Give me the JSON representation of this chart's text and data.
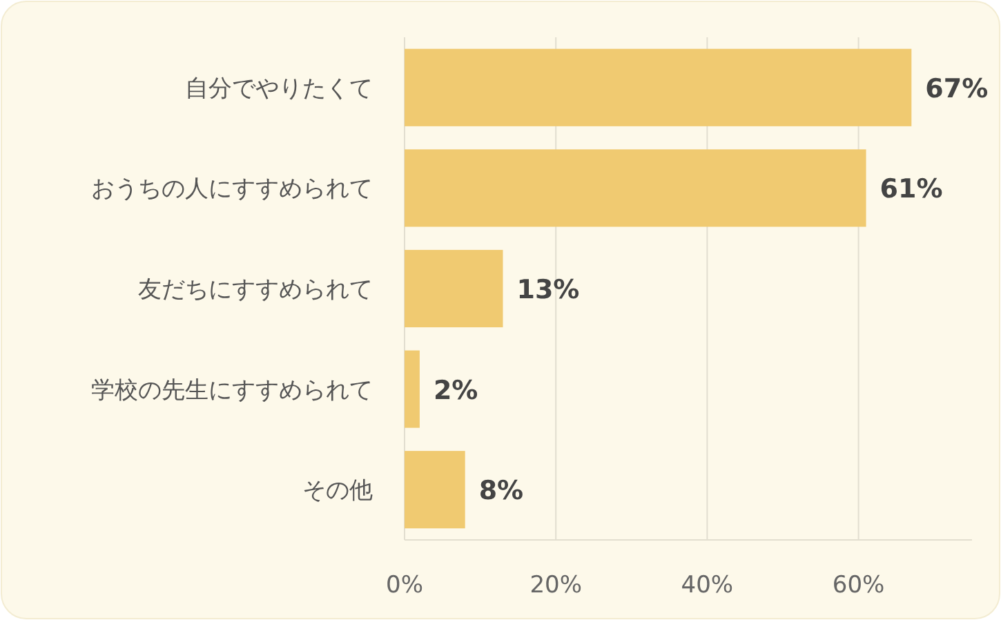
{
  "chart_data": {
    "type": "bar",
    "orientation": "horizontal",
    "categories": [
      "自分でやりたくて",
      "おうちの人にすすめられて",
      "友だちにすすめられて",
      "学校の先生にすすめられて",
      "その他"
    ],
    "values": [
      67,
      61,
      13,
      2,
      8
    ],
    "value_labels": [
      "67%",
      "61%",
      "13%",
      "2%",
      "8%"
    ],
    "color": "#f0ca71",
    "xlim": [
      0,
      75
    ],
    "xticks": [
      {
        "value": 0,
        "label": "0%"
      },
      {
        "value": 20,
        "label": "20%"
      },
      {
        "value": 40,
        "label": "40%"
      },
      {
        "value": 60,
        "label": "60%"
      }
    ],
    "grid": "x"
  }
}
